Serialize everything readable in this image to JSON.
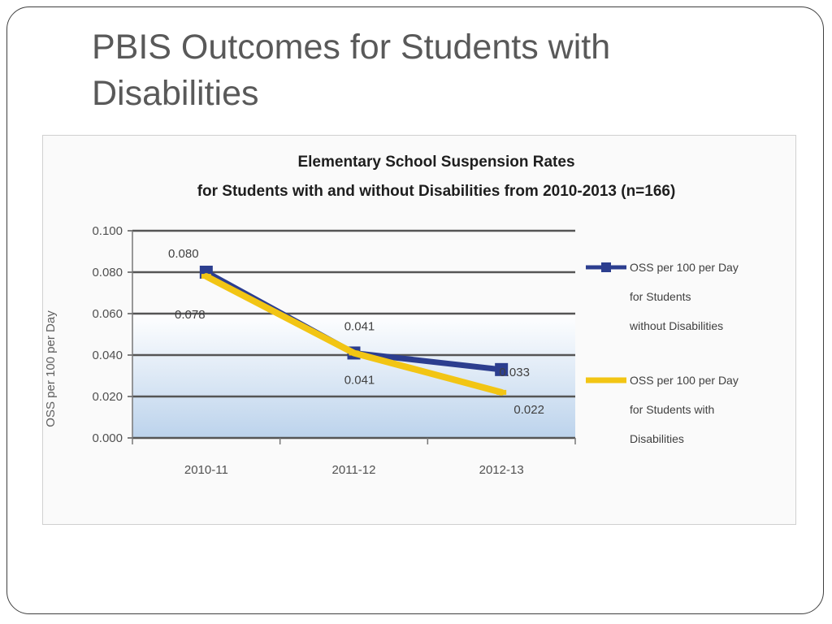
{
  "slide": {
    "title": "PBIS Outcomes for Students with Disabilities"
  },
  "chart_data": {
    "type": "line",
    "title_lines": [
      "Elementary School Suspension Rates",
      "for Students with and without Disabilities from 2010-2013 (n=166)"
    ],
    "xlabel": "",
    "ylabel": "OSS per 100 per Day",
    "categories": [
      "2010-11",
      "2011-12",
      "2012-13"
    ],
    "ylim": [
      0,
      0.1
    ],
    "yticks": [
      "0.000",
      "0.020",
      "0.040",
      "0.060",
      "0.080",
      "0.100"
    ],
    "grid": true,
    "legend_position": "right",
    "series": [
      {
        "name": "OSS per 100 per Day for Students without Disabilities",
        "legend_lines": [
          "OSS per 100 per Day",
          "for Students",
          "without Disabilities"
        ],
        "values": [
          0.08,
          0.041,
          0.033
        ],
        "labels": [
          "0.080",
          "0.041",
          "0.033"
        ],
        "color": "#2c3e8f",
        "marker": "square"
      },
      {
        "name": "OSS per 100 per Day for Students with Disabilities",
        "legend_lines": [
          "OSS per 100 per Day",
          "for Students with",
          "Disabilities"
        ],
        "values": [
          0.078,
          0.041,
          0.022
        ],
        "labels": [
          "0.078",
          "0.041",
          "0.022"
        ],
        "color": "#f2c514",
        "marker": "line"
      }
    ],
    "colors": {
      "plot_band_top": "#ffffff",
      "plot_band_bottom": "#bcd3ec",
      "gridline": "#555555"
    }
  }
}
